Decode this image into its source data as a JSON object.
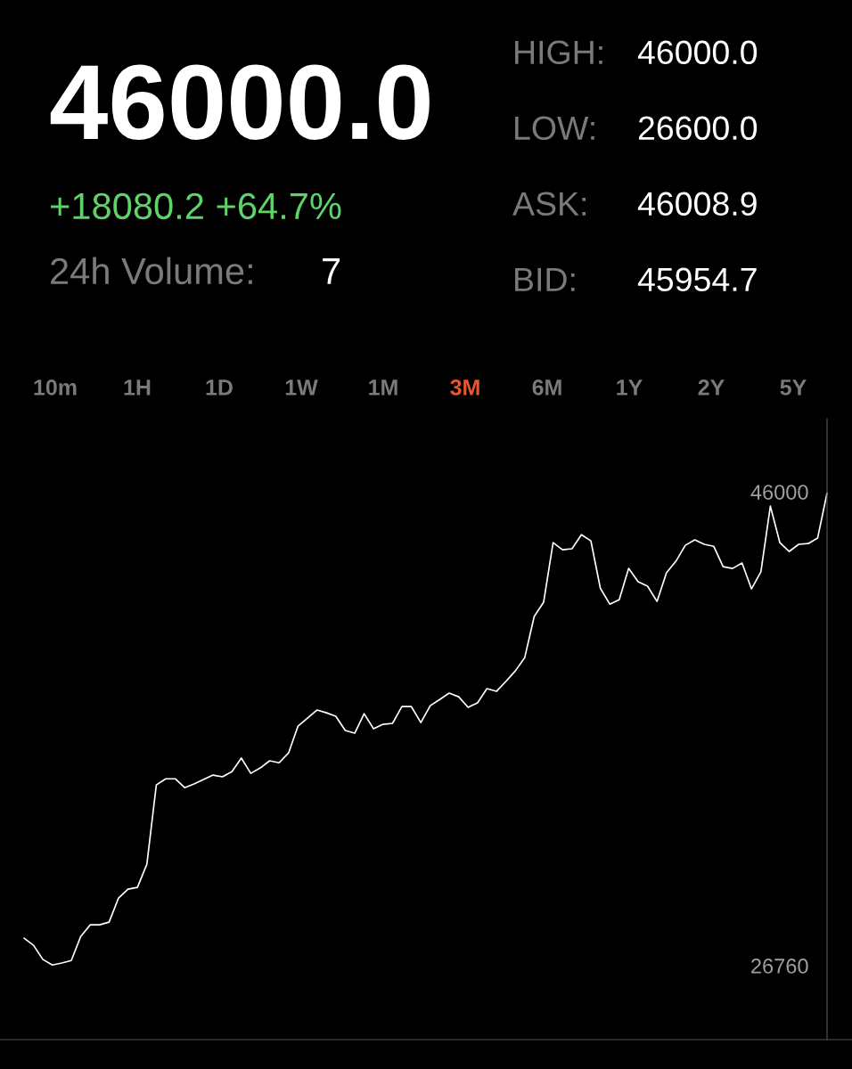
{
  "chart_data": {
    "type": "line",
    "title": "46000.0",
    "subtitle": "+18080.2 +64.7%",
    "annotations": [
      "24h Volume:",
      "7",
      "HIGH:",
      "46000.0",
      "LOW:",
      "26600.0",
      "ASK:",
      "46008.9",
      "BID:",
      "45954.7",
      "10m",
      "1H",
      "1D",
      "1W",
      "1M",
      "3M",
      "6M",
      "1Y",
      "2Y",
      "5Y"
    ],
    "categories": [
      null,
      null,
      null,
      null,
      null,
      null,
      null,
      null,
      null,
      null,
      null,
      null,
      null,
      null,
      null,
      null,
      null,
      null,
      null,
      null,
      null,
      null,
      null,
      null,
      null,
      null,
      null,
      null,
      null,
      null,
      null,
      null,
      null,
      null,
      null,
      null,
      null,
      null,
      null,
      null,
      null,
      null,
      null,
      null,
      null,
      null,
      null,
      null,
      null,
      null,
      null,
      null,
      null,
      null,
      null,
      null,
      null,
      null,
      null,
      null,
      null,
      null,
      null,
      null,
      null,
      null,
      null,
      null,
      null,
      null,
      null,
      null,
      null,
      null,
      null,
      null,
      null,
      null,
      null,
      null,
      null,
      null,
      null,
      null,
      null,
      null
    ],
    "series": [
      {
        "color": "#ffffff",
        "values": [
          27880,
          27590,
          27010,
          26790,
          26870,
          26970,
          27950,
          28420,
          28420,
          28530,
          29510,
          29870,
          29940,
          30880,
          34100,
          34350,
          34350,
          33990,
          34140,
          34320,
          34500,
          34430,
          34640,
          35190,
          34570,
          34790,
          35080,
          35000,
          35400,
          36490,
          36810,
          37140,
          37030,
          36890,
          36310,
          36200,
          36990,
          36380,
          36560,
          36600,
          37280,
          37280,
          36630,
          37320,
          37570,
          37830,
          37680,
          37250,
          37430,
          38010,
          37900,
          38300,
          38730,
          39270,
          40940,
          41520,
          43940,
          43650,
          43690,
          44260,
          44010,
          42090,
          41440,
          41620,
          42890,
          42350,
          42170,
          41550,
          42710,
          43180,
          43830,
          44050,
          43870,
          43790,
          42960,
          42890,
          43110,
          42060,
          42750,
          45420,
          43940,
          43580,
          43870,
          43900,
          44120,
          45950
        ]
      }
    ],
    "ylim": [
      23760,
      48970
    ],
    "yticks": [
      46000,
      26760
    ],
    "grid": false,
    "legend": false,
    "marker": "none",
    "line_style": "solid"
  }
}
